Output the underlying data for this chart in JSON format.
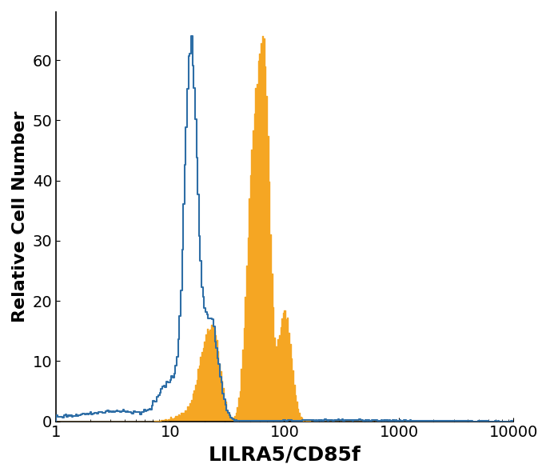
{
  "xlabel": "LILRA5/CD85f",
  "ylabel": "Relative Cell Number",
  "xlim_log": [
    0,
    4
  ],
  "ylim": [
    0,
    68
  ],
  "yticks": [
    0,
    10,
    20,
    30,
    40,
    50,
    60
  ],
  "blue_color": "#2E6EA6",
  "orange_color": "#F5A623",
  "orange_fill_alpha": 1.0,
  "blue_linewidth": 1.5,
  "orange_linewidth": 1.0,
  "xlabel_fontsize": 18,
  "ylabel_fontsize": 16,
  "tick_fontsize": 14,
  "blue_peak_height": 64,
  "orange_peak2_height": 64,
  "background_color": "#FFFFFF"
}
